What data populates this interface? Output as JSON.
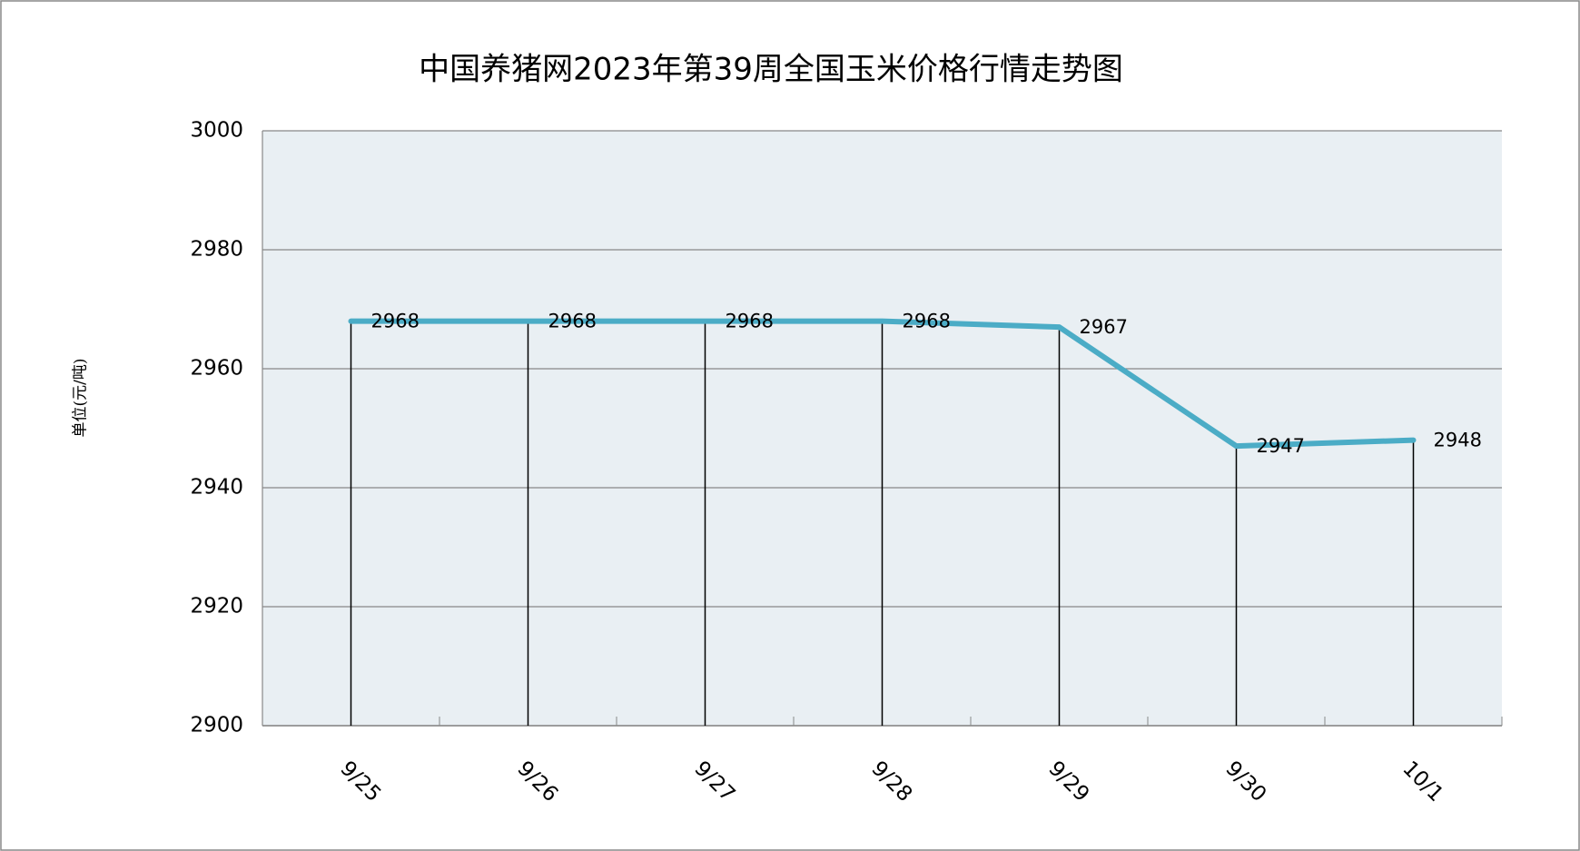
{
  "chart_data": {
    "type": "line",
    "title": "中国养猪网2023年第39周全国玉米价格行情走势图",
    "y_label": "单位(元/吨)",
    "categories": [
      "9/25",
      "9/26",
      "9/27",
      "9/28",
      "9/29",
      "9/30",
      "10/1"
    ],
    "values": [
      2968,
      2968,
      2968,
      2968,
      2967,
      2947,
      2948
    ],
    "color": "#4bacc6",
    "ylim": [
      2900,
      3000
    ],
    "yticks": [
      2900,
      2920,
      2940,
      2960,
      2980,
      3000
    ],
    "grid": true
  }
}
